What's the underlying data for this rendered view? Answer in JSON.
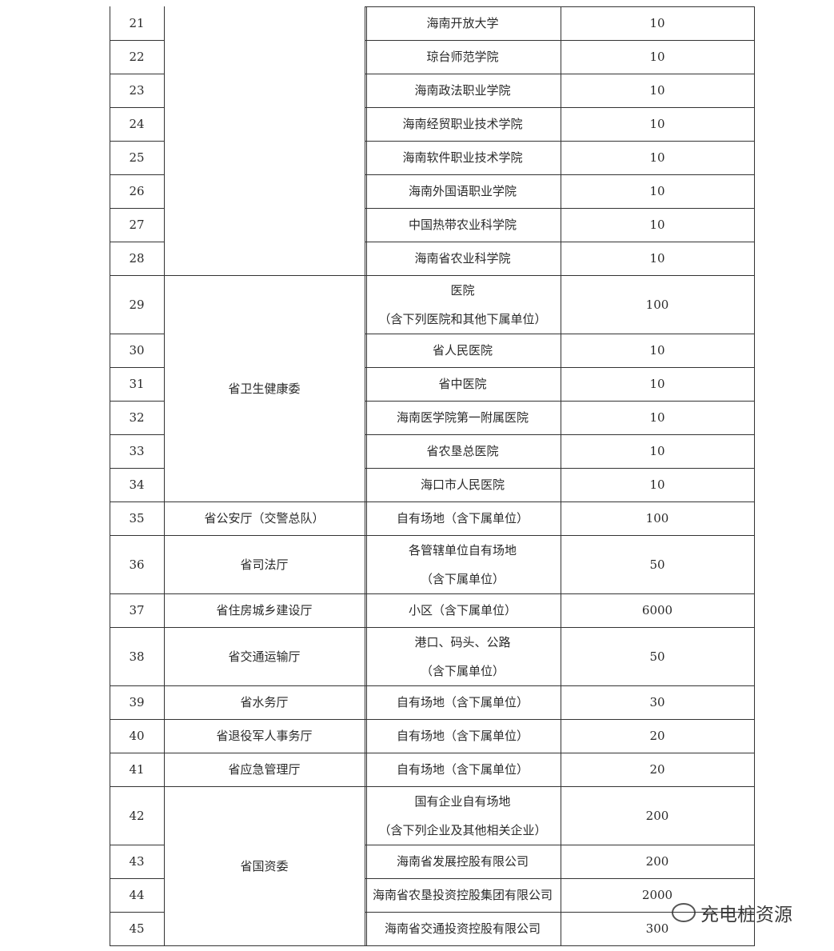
{
  "table": {
    "groups": [
      {
        "rows": [
          {
            "no": 21,
            "unit": "海南开放大学",
            "count": 10
          },
          {
            "no": 22,
            "unit": "琼台师范学院",
            "count": 10
          },
          {
            "no": 23,
            "unit": "海南政法职业学院",
            "count": 10
          },
          {
            "no": 24,
            "unit": "海南经贸职业技术学院",
            "count": 10
          },
          {
            "no": 25,
            "unit": "海南软件职业技术学院",
            "count": 10
          },
          {
            "no": 26,
            "unit": "海南外国语职业学院",
            "count": 10
          },
          {
            "no": 27,
            "unit": "中国热带农业科学院",
            "count": 10
          },
          {
            "no": 28,
            "unit": "海南省农业科学院",
            "count": 10
          }
        ]
      },
      {
        "department": "省卫生健康委",
        "rows": [
          {
            "no": 29,
            "unit": [
              "医院",
              "（含下列医院和其他下属单位）"
            ],
            "count": 100
          },
          {
            "no": 30,
            "unit": "省人民医院",
            "count": 10
          },
          {
            "no": 31,
            "unit": "省中医院",
            "count": 10
          },
          {
            "no": 32,
            "unit": "海南医学院第一附属医院",
            "count": 10
          },
          {
            "no": 33,
            "unit": "省农垦总医院",
            "count": 10
          },
          {
            "no": 34,
            "unit": "海口市人民医院",
            "count": 10
          }
        ]
      },
      {
        "department": "省公安厅（交警总队）",
        "rows": [
          {
            "no": 35,
            "unit": "自有场地（含下属单位）",
            "count": 100
          }
        ]
      },
      {
        "department": "省司法厅",
        "rows": [
          {
            "no": 36,
            "unit": [
              "各管辖单位自有场地",
              "（含下属单位）"
            ],
            "count": 50
          }
        ]
      },
      {
        "department": "省住房城乡建设厅",
        "rows": [
          {
            "no": 37,
            "unit": "小区（含下属单位）",
            "count": 6000
          }
        ]
      },
      {
        "department": "省交通运输厅",
        "rows": [
          {
            "no": 38,
            "unit": [
              "港口、码头、公路",
              "（含下属单位）"
            ],
            "count": 50
          }
        ]
      },
      {
        "department": "省水务厅",
        "rows": [
          {
            "no": 39,
            "unit": "自有场地（含下属单位）",
            "count": 30
          }
        ]
      },
      {
        "department": "省退役军人事务厅",
        "rows": [
          {
            "no": 40,
            "unit": "自有场地（含下属单位）",
            "count": 20
          }
        ]
      },
      {
        "department": "省应急管理厅",
        "rows": [
          {
            "no": 41,
            "unit": "自有场地（含下属单位）",
            "count": 20
          }
        ]
      },
      {
        "department": "省国资委",
        "rows": [
          {
            "no": 42,
            "unit": [
              "国有企业自有场地",
              "（含下列企业及其他相关企业）"
            ],
            "count": 200
          },
          {
            "no": 43,
            "unit": "海南省发展控股有限公司",
            "count": 200
          },
          {
            "no": 44,
            "unit": "海南省农垦投资控股集团有限公司",
            "count": 2000
          },
          {
            "no": 45,
            "unit": "海南省交通投资控股有限公司",
            "count": 300
          }
        ]
      }
    ]
  },
  "watermark": "充电桩资源"
}
